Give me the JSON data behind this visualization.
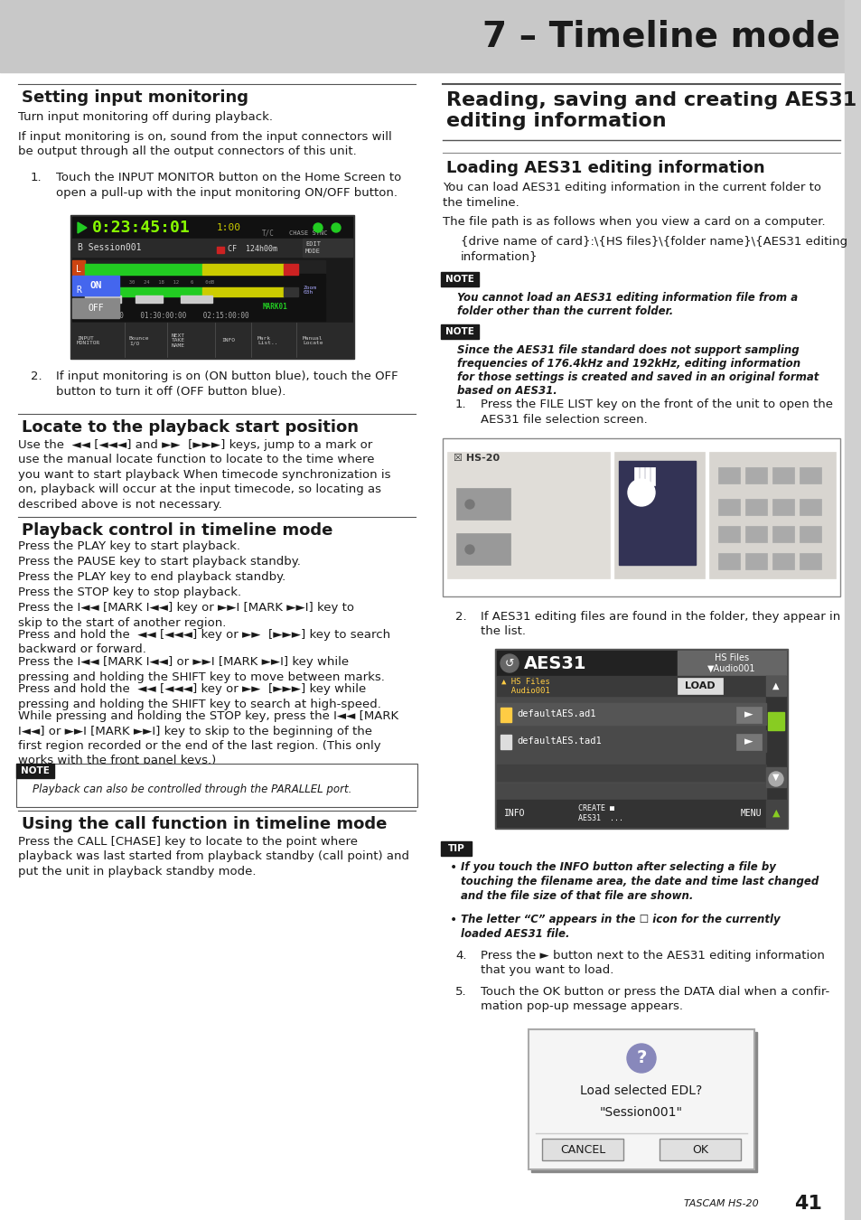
{
  "page_bg": "#ffffff",
  "header_bg": "#c8c8c8",
  "header_text": "7 – Timeline mode",
  "footer_text": "TASCAM HS-20",
  "page_num": "41",
  "note_bg": "#1a1a1a",
  "tip_bg": "#2a2a2a"
}
